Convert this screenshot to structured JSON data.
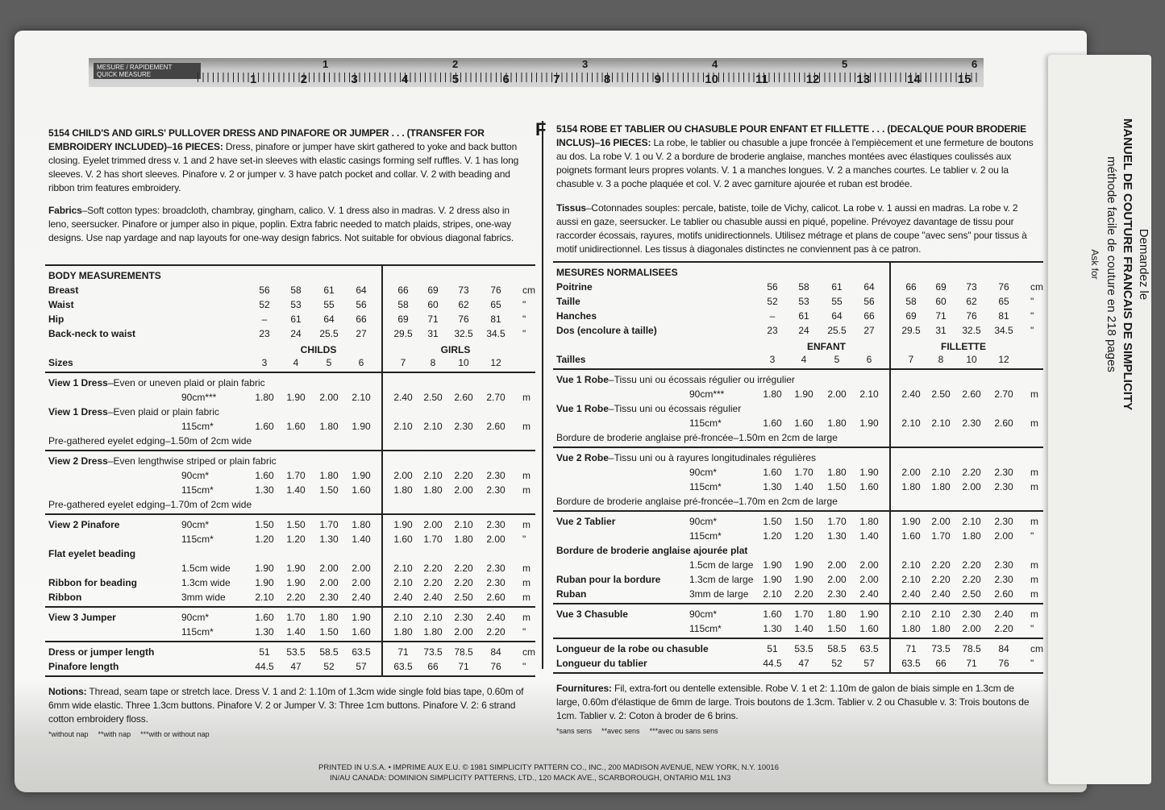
{
  "ruler": {
    "label_fr": "MESURE / RAPIDEMENT",
    "label_en": "QUICK MEASURE",
    "inches": [
      1,
      2,
      3,
      4,
      5,
      6
    ],
    "cm": [
      1,
      2,
      3,
      4,
      5,
      6,
      7,
      8,
      9,
      10,
      11,
      12,
      13,
      14,
      15
    ]
  },
  "marker": "F",
  "english": {
    "intro": {
      "head": "5154 CHILD'S AND GIRLS' PULLOVER DRESS AND PINAFORE OR JUMPER . . . (TRANSFER FOR EMBROIDERY INCLUDED)–16 PIECES:",
      "text": " Dress, pinafore or jumper have skirt gathered to yoke and back button closing. Eyelet trimmed dress v. 1 and 2 have set-in sleeves with elastic casings forming self ruffles. V. 1 has long sleeves. V. 2 has short sleeves. Pinafore v. 2 or jumper v. 3 have patch pocket and collar. V. 2 with beading and ribbon trim features embroidery."
    },
    "fabrics": {
      "head": "Fabrics",
      "text": "–Soft cotton types: broadcloth, chambray, gingham, calico. V. 1 dress also in madras. V. 2 dress also in leno, seersucker. Pinafore or jumper also in pique, poplin. Extra fabric needed to match plaids, stripes, one-way designs. Use nap yardage and nap layouts for one-way design fabrics. Not suitable for obvious diagonal fabrics."
    },
    "table": {
      "rows": [
        {
          "label": "BODY MEASUREMENTS"
        },
        {
          "label": "Breast",
          "vals": [
            "56",
            "58",
            "61",
            "64",
            "66",
            "69",
            "73",
            "76"
          ],
          "unit": "cm"
        },
        {
          "label": "Waist",
          "vals": [
            "52",
            "53",
            "55",
            "56",
            "58",
            "60",
            "62",
            "65"
          ],
          "unit": "\""
        },
        {
          "label": "Hip",
          "vals": [
            "–",
            "61",
            "64",
            "66",
            "69",
            "71",
            "76",
            "81"
          ],
          "unit": "\""
        },
        {
          "label": "Back-neck to waist",
          "vals": [
            "23",
            "24",
            "25.5",
            "27",
            "29.5",
            "31",
            "32.5",
            "34.5"
          ],
          "unit": "\""
        },
        {
          "groups": [
            "CHILDS",
            "GIRLS"
          ]
        },
        {
          "label": "Sizes",
          "vals": [
            "3",
            "4",
            "5",
            "6",
            "7",
            "8",
            "10",
            "12"
          ],
          "rule": true
        },
        {
          "label": "View 1 Dress",
          "note": "–Even or uneven plaid or plain fabric"
        },
        {
          "sub": "90cm***",
          "vals": [
            "1.80",
            "1.90",
            "2.00",
            "2.10",
            "2.40",
            "2.50",
            "2.60",
            "2.70"
          ],
          "unit": "m"
        },
        {
          "label": "View 1 Dress",
          "note": "–Even plaid or plain fabric"
        },
        {
          "sub": "115cm*",
          "vals": [
            "1.60",
            "1.60",
            "1.80",
            "1.90",
            "2.10",
            "2.10",
            "2.30",
            "2.60"
          ],
          "unit": "m"
        },
        {
          "note": "Pre-gathered eyelet edging–1.50m of 2cm wide",
          "rule": true
        },
        {
          "label": "View 2 Dress",
          "note": "–Even lengthwise striped or plain fabric"
        },
        {
          "sub": "90cm*",
          "vals": [
            "1.60",
            "1.70",
            "1.80",
            "1.90",
            "2.00",
            "2.10",
            "2.20",
            "2.30"
          ],
          "unit": "m"
        },
        {
          "sub": "115cm*",
          "vals": [
            "1.30",
            "1.40",
            "1.50",
            "1.60",
            "1.80",
            "1.80",
            "2.00",
            "2.30"
          ],
          "unit": "m"
        },
        {
          "note": "Pre-gathered eyelet edging–1.70m of 2cm wide",
          "rule": true
        },
        {
          "label": "View 2 Pinafore",
          "sub": "90cm*",
          "vals": [
            "1.50",
            "1.50",
            "1.70",
            "1.80",
            "1.90",
            "2.00",
            "2.10",
            "2.30"
          ],
          "unit": "m"
        },
        {
          "sub": "115cm*",
          "vals": [
            "1.20",
            "1.20",
            "1.30",
            "1.40",
            "1.60",
            "1.70",
            "1.80",
            "2.00"
          ],
          "unit": "\""
        },
        {
          "label": "Flat eyelet beading"
        },
        {
          "sub": "1.5cm wide",
          "vals": [
            "1.90",
            "1.90",
            "2.00",
            "2.00",
            "2.10",
            "2.20",
            "2.20",
            "2.30"
          ],
          "unit": "m"
        },
        {
          "label": "Ribbon for beading",
          "sub": "1.3cm wide",
          "vals": [
            "1.90",
            "1.90",
            "2.00",
            "2.00",
            "2.10",
            "2.20",
            "2.20",
            "2.30"
          ],
          "unit": "m"
        },
        {
          "label": "Ribbon",
          "sub": "3mm wide",
          "vals": [
            "2.10",
            "2.20",
            "2.30",
            "2.40",
            "2.40",
            "2.40",
            "2.50",
            "2.60"
          ],
          "unit": "m",
          "rule": true
        },
        {
          "label": "View 3 Jumper",
          "sub": "90cm*",
          "vals": [
            "1.60",
            "1.70",
            "1.80",
            "1.90",
            "2.10",
            "2.10",
            "2.30",
            "2.40"
          ],
          "unit": "m"
        },
        {
          "sub": "115cm*",
          "vals": [
            "1.30",
            "1.40",
            "1.50",
            "1.60",
            "1.80",
            "1.80",
            "2.00",
            "2.20"
          ],
          "unit": "\"",
          "rule": true
        },
        {
          "label": "Dress or jumper length",
          "vals": [
            "51",
            "53.5",
            "58.5",
            "63.5",
            "71",
            "73.5",
            "78.5",
            "84"
          ],
          "unit": "cm"
        },
        {
          "label": "Pinafore length",
          "vals": [
            "44.5",
            "47",
            "52",
            "57",
            "63.5",
            "66",
            "71",
            "76"
          ],
          "unit": "\"",
          "rule": true
        }
      ]
    },
    "notions": {
      "head": "Notions:",
      "text": " Thread, seam tape or stretch lace. Dress V. 1 and 2: 1.10m of 1.3cm wide single fold bias tape, 0.60m of 6mm wide elastic. Three 1.3cm buttons. Pinafore V. 2 or Jumper V. 3: Three 1cm buttons. Pinafore V. 2: 6 strand cotton embroidery floss."
    },
    "footnotes": [
      "*without nap",
      "**with nap",
      "***with or without nap"
    ]
  },
  "french": {
    "intro": {
      "head": "5154 ROBE ET TABLIER OU CHASUBLE POUR ENFANT ET FILLETTE . . . (DECALQUE POUR BRODERIE INCLUS)–16 PIECES:",
      "text": " La robe, le tablier ou chasuble a jupe froncée à l'empiècement et une fermeture de boutons au dos. La robe V. 1 ou V. 2 a bordure de broderie anglaise, manches montées avec élastiques coulissés aux poignets formant leurs propres volants. V. 1 a manches longues. V. 2 a manches courtes. Le tablier v. 2 ou la chasuble v. 3 a poche plaquée et col. V. 2 avec garniture ajourée et ruban est brodée."
    },
    "fabrics": {
      "head": "Tissus",
      "text": "–Cotonnades souples: percale, batiste, toile de Vichy, calicot. La robe v. 1 aussi en madras. La robe v. 2 aussi en gaze, seersucker. Le tablier ou chasuble aussi en piqué, popeline. Prévoyez davantage de tissu pour raccorder écossais, rayures, motifs unidirectionnels. Utilisez métrage et plans de coupe \"avec sens\" pour tissus à motif unidirectionnel. Les tissus à diagonales distinctes ne conviennent pas à ce patron."
    },
    "table": {
      "rows": [
        {
          "label": "MESURES NORMALISEES"
        },
        {
          "label": "Poitrine",
          "vals": [
            "56",
            "58",
            "61",
            "64",
            "66",
            "69",
            "73",
            "76"
          ],
          "unit": "cm"
        },
        {
          "label": "Taille",
          "vals": [
            "52",
            "53",
            "55",
            "56",
            "58",
            "60",
            "62",
            "65"
          ],
          "unit": "\""
        },
        {
          "label": "Hanches",
          "vals": [
            "–",
            "61",
            "64",
            "66",
            "69",
            "71",
            "76",
            "81"
          ],
          "unit": "\""
        },
        {
          "label": "Dos (encolure à taille)",
          "vals": [
            "23",
            "24",
            "25.5",
            "27",
            "29.5",
            "31",
            "32.5",
            "34.5"
          ],
          "unit": "\""
        },
        {
          "groups": [
            "ENFANT",
            "FILLETTE"
          ]
        },
        {
          "label": "Tailles",
          "vals": [
            "3",
            "4",
            "5",
            "6",
            "7",
            "8",
            "10",
            "12"
          ],
          "rule": true
        },
        {
          "label": "Vue 1 Robe",
          "note": "–Tissu uni ou écossais régulier ou irrégulier"
        },
        {
          "sub": "90cm***",
          "vals": [
            "1.80",
            "1.90",
            "2.00",
            "2.10",
            "2.40",
            "2.50",
            "2.60",
            "2.70"
          ],
          "unit": "m"
        },
        {
          "label": "Vue 1 Robe",
          "note": "–Tissu uni ou écossais régulier"
        },
        {
          "sub": "115cm*",
          "vals": [
            "1.60",
            "1.60",
            "1.80",
            "1.90",
            "2.10",
            "2.10",
            "2.30",
            "2.60"
          ],
          "unit": "m"
        },
        {
          "note": "Bordure de broderie anglaise pré-froncée–1.50m en 2cm de large",
          "rule": true
        },
        {
          "label": "Vue 2 Robe",
          "note": "–Tissu uni ou à rayures longitudinales régulières"
        },
        {
          "sub": "90cm*",
          "vals": [
            "1.60",
            "1.70",
            "1.80",
            "1.90",
            "2.00",
            "2.10",
            "2.20",
            "2.30"
          ],
          "unit": "m"
        },
        {
          "sub": "115cm*",
          "vals": [
            "1.30",
            "1.40",
            "1.50",
            "1.60",
            "1.80",
            "1.80",
            "2.00",
            "2.30"
          ],
          "unit": "m"
        },
        {
          "note": "Bordure de broderie anglaise pré-froncée–1.70m en 2cm de large",
          "rule": true
        },
        {
          "label": "Vue 2 Tablier",
          "sub": "90cm*",
          "vals": [
            "1.50",
            "1.50",
            "1.70",
            "1.80",
            "1.90",
            "2.00",
            "2.10",
            "2.30"
          ],
          "unit": "m"
        },
        {
          "sub": "115cm*",
          "vals": [
            "1.20",
            "1.20",
            "1.30",
            "1.40",
            "1.60",
            "1.70",
            "1.80",
            "2.00"
          ],
          "unit": "\""
        },
        {
          "label": "Bordure de broderie anglaise ajourée plat"
        },
        {
          "sub": "1.5cm de large",
          "vals": [
            "1.90",
            "1.90",
            "2.00",
            "2.00",
            "2.10",
            "2.20",
            "2.20",
            "2.30"
          ],
          "unit": "m"
        },
        {
          "label": "Ruban pour la bordure",
          "sub": "1.3cm de large",
          "vals": [
            "1.90",
            "1.90",
            "2.00",
            "2.00",
            "2.10",
            "2.20",
            "2.20",
            "2.30"
          ],
          "unit": "m"
        },
        {
          "label": "Ruban",
          "sub": "3mm de large",
          "vals": [
            "2.10",
            "2.20",
            "2.30",
            "2.40",
            "2.40",
            "2.40",
            "2.50",
            "2.60"
          ],
          "unit": "m",
          "rule": true
        },
        {
          "label": "Vue 3 Chasuble",
          "sub": "90cm*",
          "vals": [
            "1.60",
            "1.70",
            "1.80",
            "1.90",
            "2.10",
            "2.10",
            "2.30",
            "2.40"
          ],
          "unit": "m"
        },
        {
          "sub": "115cm*",
          "vals": [
            "1.30",
            "1.40",
            "1.50",
            "1.60",
            "1.80",
            "1.80",
            "2.00",
            "2.20"
          ],
          "unit": "\"",
          "rule": true
        },
        {
          "label": "Longueur de la robe ou chasuble",
          "vals": [
            "51",
            "53.5",
            "58.5",
            "63.5",
            "71",
            "73.5",
            "78.5",
            "84"
          ],
          "unit": "cm"
        },
        {
          "label": "Longueur du tablier",
          "vals": [
            "44.5",
            "47",
            "52",
            "57",
            "63.5",
            "66",
            "71",
            "76"
          ],
          "unit": "\"",
          "rule": true
        }
      ]
    },
    "notions": {
      "head": "Fournitures:",
      "text": " Fil, extra-fort ou dentelle extensible. Robe V. 1 et 2: 1.10m de galon de biais simple en 1.3cm de large, 0.60m d'élastique de 6mm de large. Trois boutons de 1.3cm. Tablier v. 2 ou Chasuble v. 3: Trois boutons de 1cm. Tablier v. 2: Coton à broder de 6 brins."
    },
    "footnotes": [
      "*sans sens",
      "**avec sens",
      "***avec ou sans sens"
    ]
  },
  "side": [
    "Demandez le",
    "MANUEL DE COUTURE FRANCAIS DE SIMPLICITY",
    "méthode facile de couture en 218 pages",
    "Ask for"
  ],
  "footer": [
    "PRINTED IN U.S.A. • IMPRIME AUX E.U. © 1981 SIMPLICITY PATTERN CO., INC., 200 MADISON AVENUE, NEW YORK, N.Y. 10016",
    "IN/AU CANADA: DOMINION SIMPLICITY PATTERNS, LTD., 120 MACK AVE., SCARBOROUGH, ONTARIO M1L 1N3"
  ]
}
